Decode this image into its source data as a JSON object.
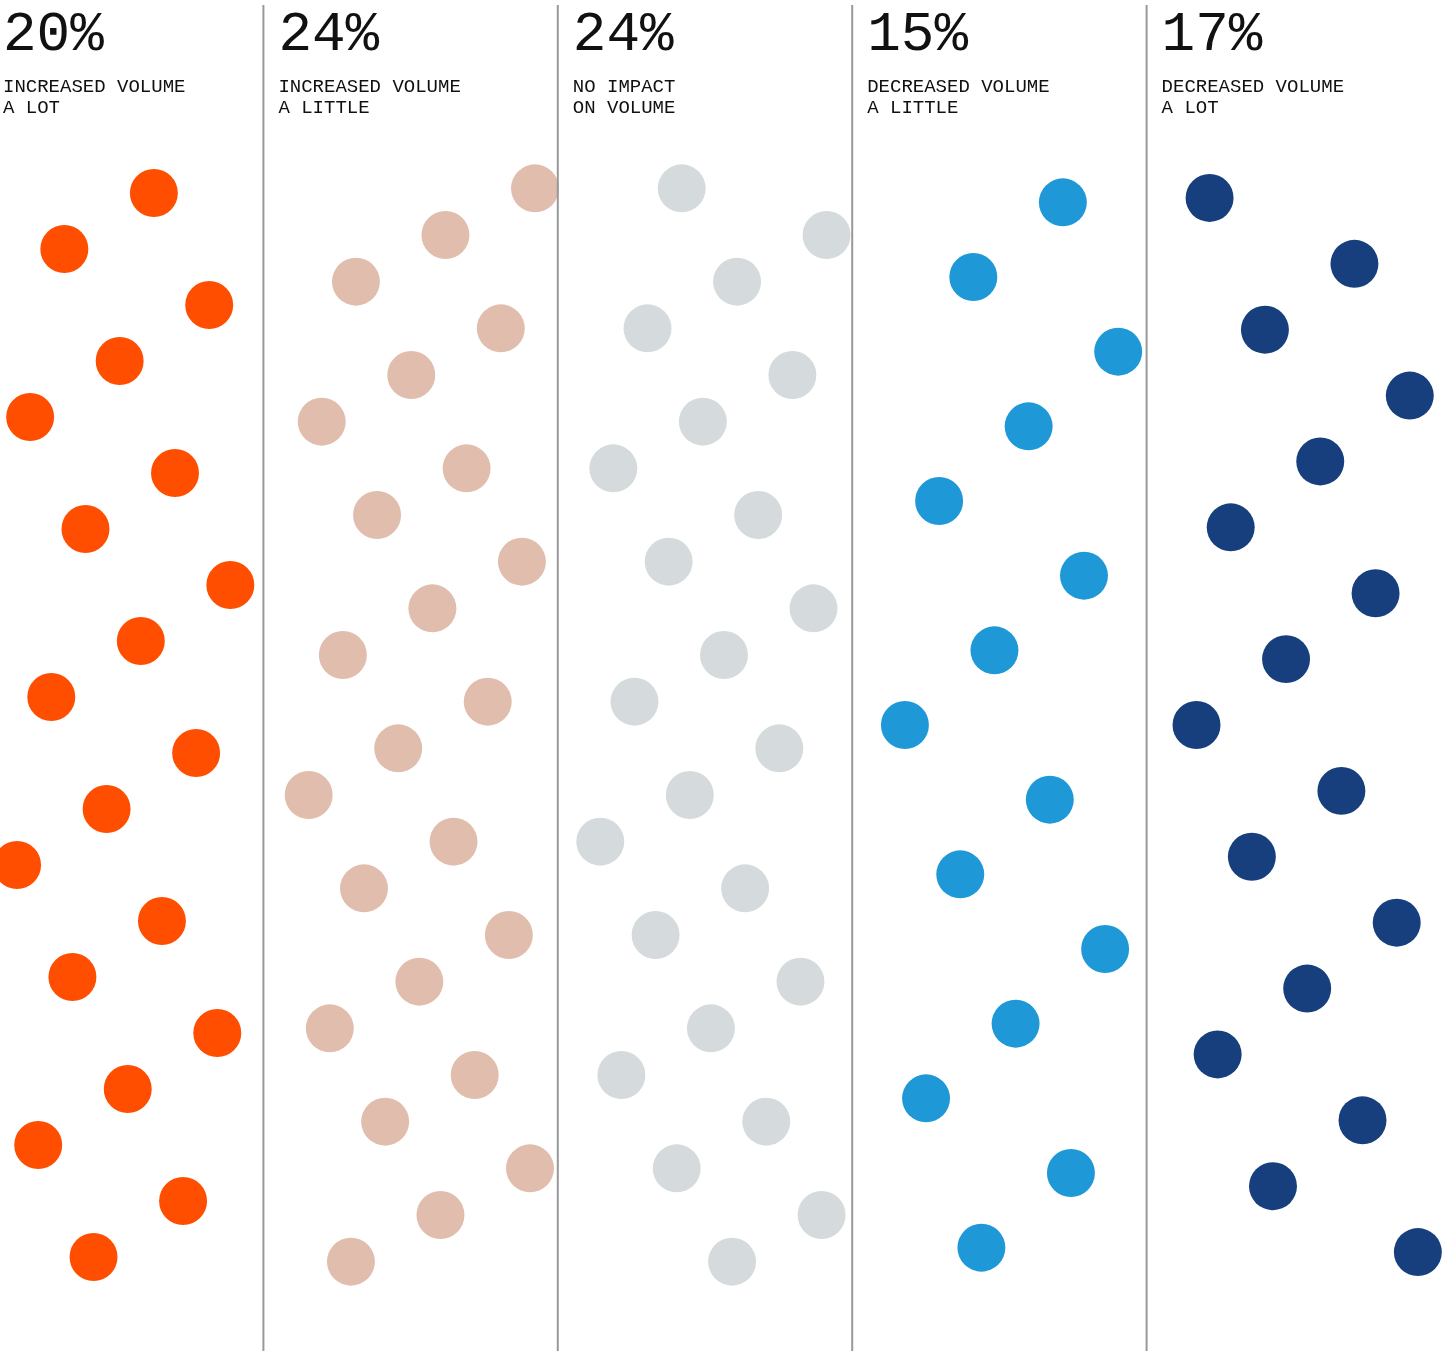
{
  "chart_data": {
    "type": "other",
    "categories": [
      "INCREASED VOLUME\nA LOT",
      "INCREASED VOLUME\nA LITTLE",
      "NO IMPACT\nON VOLUME",
      "DECREASED VOLUME\nA LITTLE",
      "DECREASED VOLUME\nA LOT"
    ],
    "values": [
      20,
      24,
      24,
      15,
      17
    ],
    "value_labels": [
      "20%",
      "24%",
      "24%",
      "15%",
      "17%"
    ],
    "colors": [
      "#ff4e00",
      "#e0bdad",
      "#d5dadc",
      "#1e98d6",
      "#173f7e"
    ]
  }
}
